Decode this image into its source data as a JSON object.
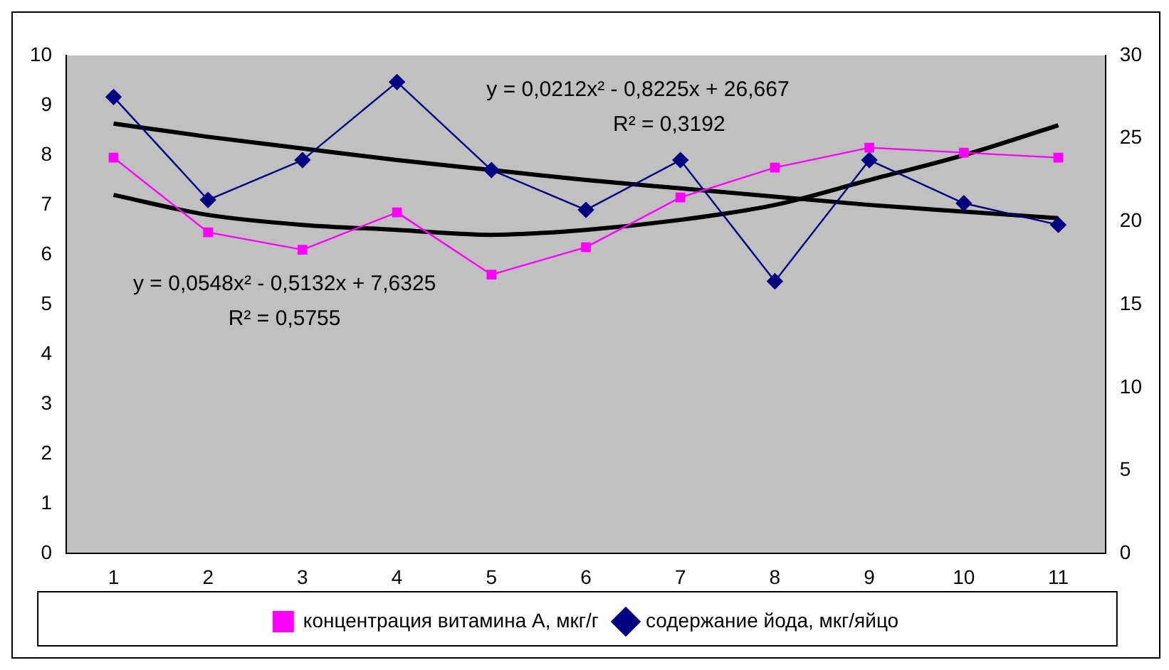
{
  "chart_data": {
    "type": "line",
    "categories": [
      "1",
      "2",
      "3",
      "4",
      "5",
      "6",
      "7",
      "8",
      "9",
      "10",
      "11"
    ],
    "series": [
      {
        "name": "концентрация витамина А, мкг/г",
        "color": "#ff00ff",
        "marker": "square",
        "values": [
          7.95,
          6.45,
          6.1,
          6.85,
          5.6,
          6.15,
          7.15,
          7.75,
          8.15,
          8.05,
          7.95
        ]
      },
      {
        "name": "содержание йода, мкг/яйцо",
        "color": "#000080",
        "marker": "diamond",
        "axis": "y2",
        "values": [
          27.5,
          21.3,
          23.7,
          28.4,
          23.1,
          20.7,
          23.7,
          16.4,
          23.7,
          21.1,
          19.8
        ]
      },
      {
        "color": "#000000",
        "marker": "none",
        "values": [
          7.2,
          6.8,
          6.6,
          6.5,
          6.4,
          6.5,
          6.7,
          7.0,
          7.5,
          8.0,
          8.6
        ]
      },
      {
        "color": "#000000",
        "marker": "none",
        "axis": "y2",
        "values": [
          25.9,
          25.1,
          24.4,
          23.7,
          23.1,
          22.5,
          22.0,
          21.5,
          21.0,
          20.6,
          20.2
        ]
      }
    ],
    "ylim": [
      0,
      10
    ],
    "yticks": [
      0,
      1,
      2,
      3,
      4,
      5,
      6,
      7,
      8,
      9,
      10
    ],
    "y2lim": [
      0,
      30
    ],
    "y2ticks": [
      0,
      5,
      10,
      15,
      20,
      25,
      30
    ],
    "annotations": [
      "y = 0,0212x² - 0,8225x + 26,667",
      "R² = 0,3192",
      "y = 0,0548x² - 0,5132x + 7,6325",
      "R² = 0,5755"
    ],
    "grid": false,
    "legend": "bottom",
    "line_style": "solid"
  }
}
